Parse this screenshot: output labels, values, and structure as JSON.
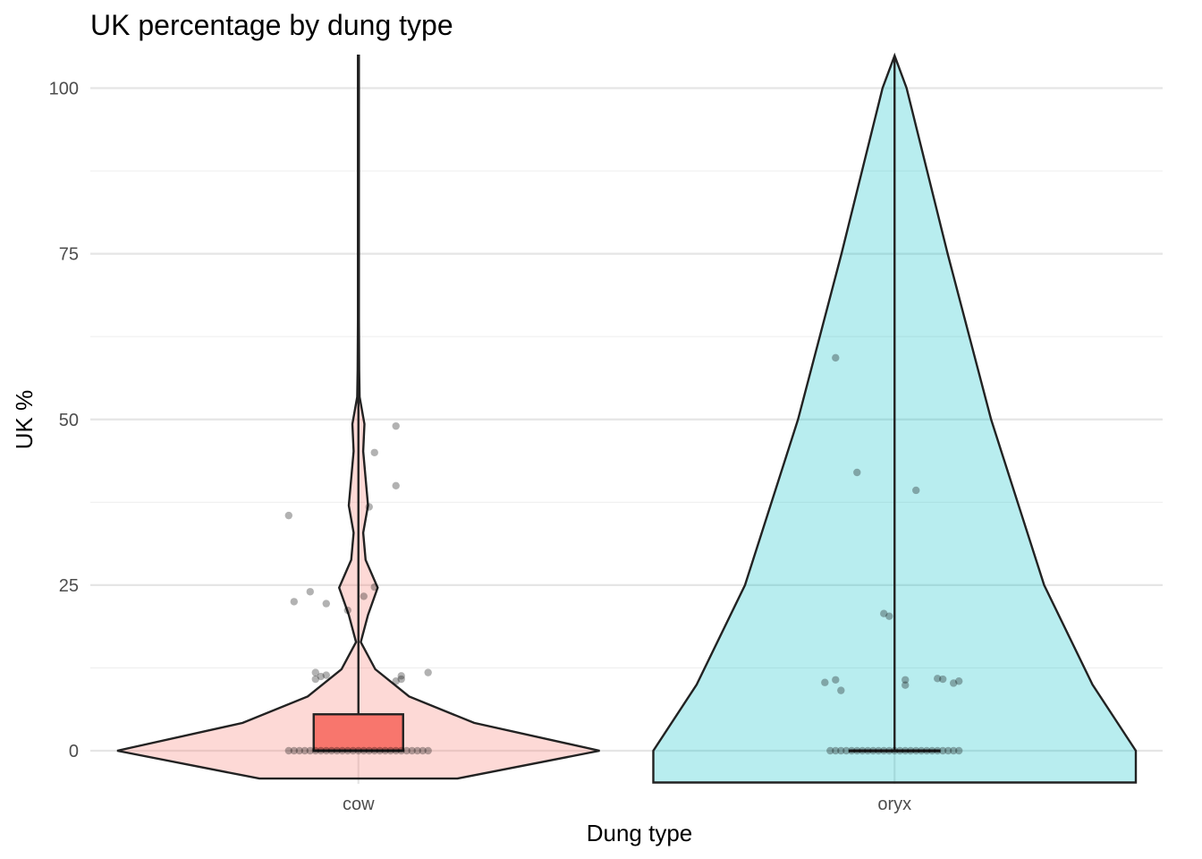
{
  "chart_data": {
    "type": "violin",
    "title": "UK percentage by dung type",
    "xlabel": "Dung type",
    "ylabel": "UK %",
    "categories": [
      "cow",
      "oryx"
    ],
    "ylim": [
      -4.8,
      104.9
    ],
    "yticks": [
      0,
      25,
      50,
      75,
      100
    ],
    "grid": true,
    "legend": "none",
    "series": [
      {
        "category": "cow",
        "fill": "#f8766d",
        "box": {
          "q1": 0,
          "median": 0,
          "q3": 5.5,
          "whisker_low": 0,
          "whisker_high": 12,
          "upper_extreme": 104.9
        },
        "violin_profile": [
          [
            -4.2,
            0.41
          ],
          [
            0,
            1.0
          ],
          [
            4.2,
            0.48
          ],
          [
            8.2,
            0.21
          ],
          [
            12.3,
            0.07
          ],
          [
            16.4,
            0.01
          ],
          [
            20.5,
            0.04
          ],
          [
            24.6,
            0.08
          ],
          [
            28.8,
            0.03
          ],
          [
            32.9,
            0.02
          ],
          [
            37.0,
            0.04
          ],
          [
            41.1,
            0.03
          ],
          [
            45.2,
            0.02
          ],
          [
            49.3,
            0.025
          ],
          [
            53.4,
            0.005
          ],
          [
            57.5,
            0.003
          ],
          [
            65.0,
            0.002
          ],
          [
            104.9,
            0.002
          ]
        ],
        "points": [
          {
            "dx": -0.13,
            "y": 35.5
          },
          {
            "dx": -0.12,
            "y": 22.5
          },
          {
            "dx": -0.09,
            "y": 24
          },
          {
            "dx": -0.06,
            "y": 22.2
          },
          {
            "dx": -0.02,
            "y": 21.2
          },
          {
            "dx": 0.01,
            "y": 23.3
          },
          {
            "dx": 0.03,
            "y": 24.7
          },
          {
            "dx": 0.02,
            "y": 36.8
          },
          {
            "dx": 0.03,
            "y": 45
          },
          {
            "dx": 0.07,
            "y": 49
          },
          {
            "dx": 0.07,
            "y": 40
          },
          {
            "dx": -0.08,
            "y": 11.8
          },
          {
            "dx": -0.07,
            "y": 11.2
          },
          {
            "dx": -0.08,
            "y": 10.8
          },
          {
            "dx": -0.06,
            "y": 11.4
          },
          {
            "dx": 0.08,
            "y": 11.3
          },
          {
            "dx": 0.07,
            "y": 10.5
          },
          {
            "dx": 0.08,
            "y": 10.8
          },
          {
            "dx": 0.13,
            "y": 11.8
          },
          {
            "dx": -0.13,
            "y": 0
          },
          {
            "dx": -0.12,
            "y": 0
          },
          {
            "dx": -0.11,
            "y": 0
          },
          {
            "dx": -0.1,
            "y": 0
          },
          {
            "dx": -0.09,
            "y": 0
          },
          {
            "dx": -0.08,
            "y": 0
          },
          {
            "dx": -0.07,
            "y": 0
          },
          {
            "dx": -0.06,
            "y": 0
          },
          {
            "dx": -0.05,
            "y": 0
          },
          {
            "dx": -0.04,
            "y": 0
          },
          {
            "dx": -0.03,
            "y": 0
          },
          {
            "dx": -0.02,
            "y": 0
          },
          {
            "dx": -0.01,
            "y": 0
          },
          {
            "dx": 0.0,
            "y": 0
          },
          {
            "dx": 0.01,
            "y": 0
          },
          {
            "dx": 0.02,
            "y": 0
          },
          {
            "dx": 0.03,
            "y": 0
          },
          {
            "dx": 0.04,
            "y": 0
          },
          {
            "dx": 0.05,
            "y": 0
          },
          {
            "dx": 0.06,
            "y": 0
          },
          {
            "dx": 0.07,
            "y": 0
          },
          {
            "dx": 0.08,
            "y": 0
          },
          {
            "dx": 0.09,
            "y": 0
          },
          {
            "dx": 0.1,
            "y": 0
          },
          {
            "dx": 0.11,
            "y": 0
          },
          {
            "dx": 0.12,
            "y": 0
          },
          {
            "dx": 0.13,
            "y": 0
          }
        ]
      },
      {
        "category": "oryx",
        "fill": "#00bfc4",
        "box": {
          "q1": 0,
          "median": 0,
          "q3": 0,
          "whisker_low": 0,
          "whisker_high": 0,
          "upper_extreme": 104.9
        },
        "violin_profile": [
          [
            -4.8,
            1.0
          ],
          [
            0,
            1.0
          ],
          [
            10,
            0.82
          ],
          [
            25,
            0.62
          ],
          [
            50,
            0.4
          ],
          [
            75,
            0.22
          ],
          [
            100,
            0.05
          ],
          [
            104.9,
            0.0
          ]
        ],
        "points": [
          {
            "dx": -0.11,
            "y": 59.3
          },
          {
            "dx": -0.07,
            "y": 42
          },
          {
            "dx": 0.04,
            "y": 39.3
          },
          {
            "dx": -0.02,
            "y": 20.7
          },
          {
            "dx": -0.01,
            "y": 20.3
          },
          {
            "dx": -0.13,
            "y": 10.3
          },
          {
            "dx": -0.11,
            "y": 10.7
          },
          {
            "dx": -0.1,
            "y": 9.1
          },
          {
            "dx": 0.02,
            "y": 10.7
          },
          {
            "dx": 0.02,
            "y": 9.9
          },
          {
            "dx": 0.08,
            "y": 10.9
          },
          {
            "dx": 0.09,
            "y": 10.8
          },
          {
            "dx": 0.11,
            "y": 10.2
          },
          {
            "dx": 0.12,
            "y": 10.5
          },
          {
            "dx": -0.12,
            "y": 0
          },
          {
            "dx": -0.11,
            "y": 0
          },
          {
            "dx": -0.1,
            "y": 0
          },
          {
            "dx": -0.09,
            "y": 0
          },
          {
            "dx": -0.08,
            "y": 0
          },
          {
            "dx": -0.07,
            "y": 0
          },
          {
            "dx": -0.06,
            "y": 0
          },
          {
            "dx": -0.05,
            "y": 0
          },
          {
            "dx": -0.04,
            "y": 0
          },
          {
            "dx": -0.03,
            "y": 0
          },
          {
            "dx": -0.02,
            "y": 0
          },
          {
            "dx": -0.01,
            "y": 0
          },
          {
            "dx": 0.0,
            "y": 0
          },
          {
            "dx": 0.01,
            "y": 0
          },
          {
            "dx": 0.02,
            "y": 0
          },
          {
            "dx": 0.03,
            "y": 0
          },
          {
            "dx": 0.04,
            "y": 0
          },
          {
            "dx": 0.05,
            "y": 0
          },
          {
            "dx": 0.06,
            "y": 0
          },
          {
            "dx": 0.07,
            "y": 0
          },
          {
            "dx": 0.08,
            "y": 0
          },
          {
            "dx": 0.09,
            "y": 0
          },
          {
            "dx": 0.1,
            "y": 0
          },
          {
            "dx": 0.11,
            "y": 0
          },
          {
            "dx": 0.12,
            "y": 0
          }
        ]
      }
    ]
  }
}
